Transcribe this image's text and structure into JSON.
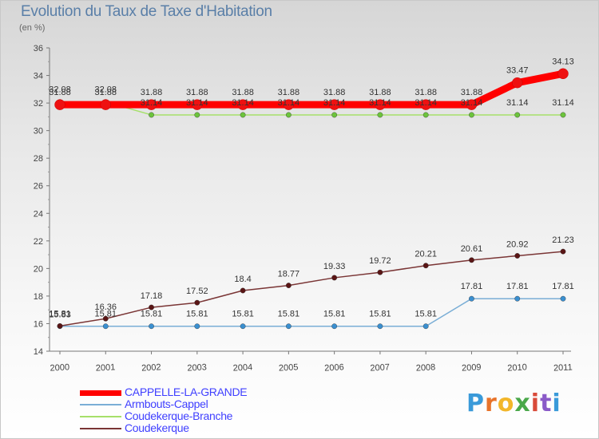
{
  "title": "Evolution du Taux de Taxe d'Habitation",
  "unit": "(en %)",
  "logo": [
    "P",
    "r",
    "o",
    "x",
    "i",
    "t",
    "i"
  ],
  "chart_data": {
    "type": "line",
    "title": "Evolution du Taux de Taxe d'Habitation",
    "ylabel": "(en %)",
    "xlabel": "",
    "ylim": [
      14,
      36
    ],
    "yticks": [
      14,
      16,
      18,
      20,
      22,
      24,
      26,
      28,
      30,
      32,
      34,
      36
    ],
    "grid": false,
    "legend": "bottom-left",
    "categories": [
      "2000",
      "2001",
      "2002",
      "2003",
      "2004",
      "2005",
      "2006",
      "2007",
      "2008",
      "2009",
      "2010",
      "2011"
    ],
    "series": [
      {
        "name": "CAPPELLE-LA-GRANDE",
        "color": "#ff0000",
        "marker": "#ee1111",
        "weight": "thick",
        "values": [
          31.88,
          31.88,
          31.88,
          31.88,
          31.88,
          31.88,
          31.88,
          31.88,
          31.88,
          31.88,
          33.47,
          34.13
        ],
        "labels": [
          "31.88",
          "31.88",
          "31.88",
          "31.88",
          "31.88",
          "31.88",
          "31.88",
          "31.88",
          "31.88",
          "31.88",
          "33.47",
          "34.13"
        ]
      },
      {
        "name": "Armbouts-Cappel",
        "color": "#7aaed6",
        "marker": "#3a8fd0",
        "weight": "thin",
        "values": [
          15.81,
          15.81,
          15.81,
          15.81,
          15.81,
          15.81,
          15.81,
          15.81,
          15.81,
          17.81,
          17.81,
          17.81
        ],
        "labels": [
          "15.81",
          "15.81",
          "15.81",
          "15.81",
          "15.81",
          "15.81",
          "15.81",
          "15.81",
          "15.81",
          "17.81",
          "17.81",
          "17.81"
        ]
      },
      {
        "name": "Coudekerque-Branche",
        "color": "#a6e06a",
        "marker": "#6cc43c",
        "weight": "thin",
        "values": [
          32.08,
          32.08,
          31.14,
          31.14,
          31.14,
          31.14,
          31.14,
          31.14,
          31.14,
          31.14,
          31.14,
          31.14
        ],
        "labels": [
          "32.08",
          "32.08",
          "31.14",
          "31.14",
          "31.14",
          "31.14",
          "31.14",
          "31.14",
          "31.14",
          "31.14",
          "31.14",
          "31.14"
        ]
      },
      {
        "name": "Coudekerque",
        "color": "#7a3535",
        "marker": "#5a1515",
        "weight": "thin",
        "values": [
          15.83,
          16.36,
          17.18,
          17.52,
          18.4,
          18.77,
          19.33,
          19.72,
          20.21,
          20.61,
          20.92,
          21.23
        ],
        "labels": [
          "15.83",
          "16.36",
          "17.18",
          "17.52",
          "18.4",
          "18.77",
          "19.33",
          "19.72",
          "20.21",
          "20.61",
          "20.92",
          "21.23"
        ]
      }
    ]
  }
}
